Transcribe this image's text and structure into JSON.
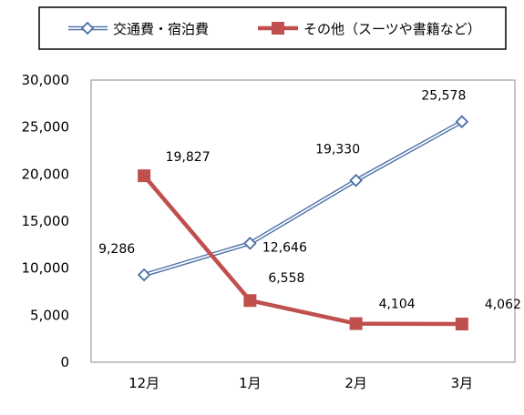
{
  "chart_data": {
    "type": "line",
    "title": "",
    "xlabel": "",
    "ylabel": "",
    "categories": [
      "12月",
      "1月",
      "2月",
      "3月"
    ],
    "ylim": [
      0,
      30000
    ],
    "yticks": [
      0,
      5000,
      10000,
      15000,
      20000,
      25000,
      30000
    ],
    "ytick_labels": [
      "0",
      "5,000",
      "10,000",
      "15,000",
      "20,000",
      "25,000",
      "30,000"
    ],
    "grid": false,
    "legend_position": "top",
    "series": [
      {
        "name": "交通費・宿泊費",
        "values": [
          9286,
          12646,
          19330,
          25578
        ],
        "labels": [
          "9,286",
          "12,646",
          "19,330",
          "25,578"
        ],
        "color": "#4a6fa5",
        "marker": "diamond"
      },
      {
        "name": "その他（スーツや書籍など）",
        "values": [
          19827,
          6558,
          4104,
          4062
        ],
        "labels": [
          "19,827",
          "6,558",
          "4,104",
          "4,062"
        ],
        "color": "#c0504d",
        "marker": "square"
      }
    ]
  }
}
